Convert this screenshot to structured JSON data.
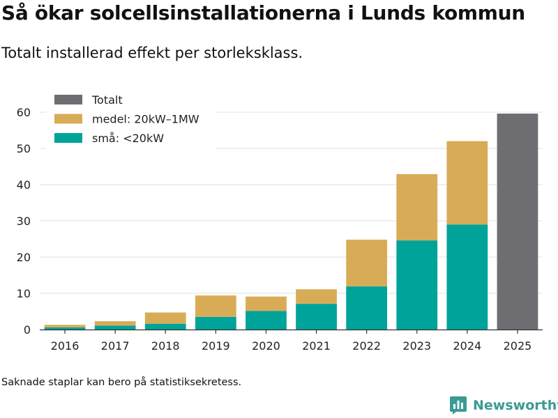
{
  "header": {
    "title": "Så ökar solcellsinstallationerna i Lunds kommun",
    "subtitle": "Totalt installerad effekt per storleksklass."
  },
  "footer": {
    "note": "Saknade staplar kan bero på statistiksekretess.",
    "brand": "Newsworthy"
  },
  "chart_data": {
    "type": "bar",
    "stacked": true,
    "categories": [
      "2016",
      "2017",
      "2018",
      "2019",
      "2020",
      "2021",
      "2022",
      "2023",
      "2024",
      "2025"
    ],
    "series": [
      {
        "name": "små: <20kW",
        "color": "#00a39a",
        "values": [
          0.6,
          1.1,
          1.6,
          3.5,
          5.1,
          7.1,
          11.9,
          24.6,
          29.0,
          null
        ]
      },
      {
        "name": "medel: 20kW–1MW",
        "color": "#d8ac57",
        "values": [
          0.7,
          1.2,
          3.1,
          5.9,
          4.0,
          4.0,
          12.9,
          18.3,
          23.0,
          null
        ]
      },
      {
        "name": "Totalt",
        "color": "#6e6d72",
        "values": [
          null,
          null,
          null,
          null,
          null,
          null,
          null,
          null,
          null,
          59.6
        ]
      }
    ],
    "legend": [
      "Totalt",
      "medel: 20kW–1MW",
      "små: <20kW"
    ],
    "legend_position": "top-left",
    "ylim": [
      0,
      60
    ],
    "yticks": [
      0,
      10,
      20,
      30,
      40,
      50,
      60
    ],
    "xlabel": "",
    "ylabel": "",
    "grid": true
  }
}
